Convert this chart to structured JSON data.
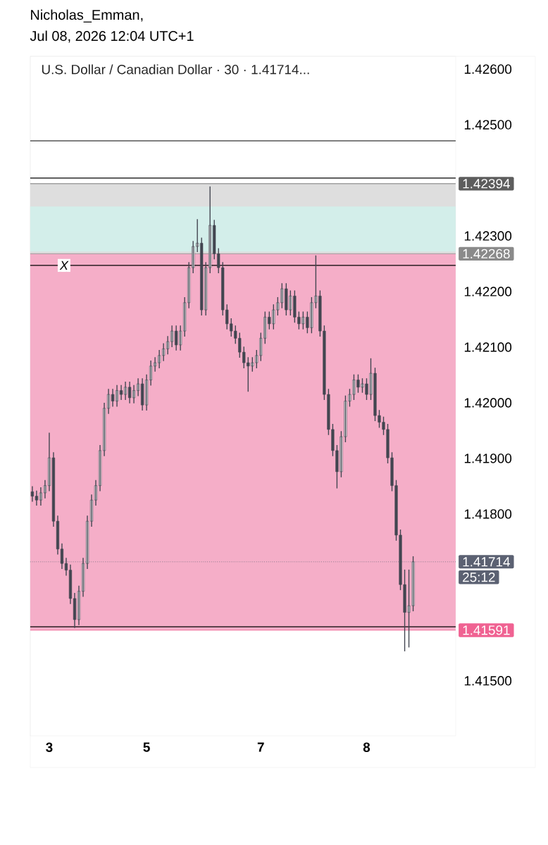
{
  "chart_data": {
    "type": "candlestick",
    "title": "U.S. Dollar / Canadian Dollar · 30 · 1.41714...",
    "annotations": [
      "Nicholas_Emman,",
      "Jul 08, 2026 12:04 UTC+1",
      "25:12"
    ],
    "color": "#434651",
    "categories": [
      null,
      null,
      null,
      null,
      "3",
      null,
      null,
      null,
      null,
      null,
      null,
      null,
      null,
      null,
      null,
      null,
      null,
      null,
      null,
      null,
      null,
      null,
      null,
      null,
      null,
      null,
      null,
      "5",
      null,
      null,
      null,
      null,
      null,
      null,
      null,
      null,
      null,
      null,
      null,
      null,
      null,
      null,
      null,
      null,
      null,
      null,
      null,
      null,
      null,
      null,
      null,
      null,
      null,
      null,
      "7",
      null,
      null,
      null,
      null,
      null,
      null,
      null,
      null,
      null,
      null,
      null,
      null,
      null,
      null,
      null,
      null,
      null,
      null,
      null,
      null,
      null,
      null,
      null,
      null,
      "8",
      null,
      null,
      null,
      null,
      null,
      null,
      null,
      null,
      null,
      null,
      null
    ],
    "ohlc": [
      [
        1.4184,
        1.4185,
        1.41822,
        1.41832
      ],
      [
        1.41832,
        1.41842,
        1.41815,
        1.41825
      ],
      [
        1.41825,
        1.41848,
        1.41815,
        1.41838
      ],
      [
        1.41838,
        1.41861,
        1.41828,
        1.41851
      ],
      [
        1.41851,
        1.41946,
        1.41841,
        1.41901
      ],
      [
        1.41901,
        1.41911,
        1.41777,
        1.41787
      ],
      [
        1.41787,
        1.41797,
        1.41727,
        1.41737
      ],
      [
        1.41737,
        1.41747,
        1.41701,
        1.41711
      ],
      [
        1.41711,
        1.41721,
        1.41689,
        1.41699
      ],
      [
        1.41699,
        1.41709,
        1.41638,
        1.41648
      ],
      [
        1.41648,
        1.41658,
        1.41595,
        1.4161
      ],
      [
        1.4161,
        1.41671,
        1.416,
        1.41661
      ],
      [
        1.41661,
        1.41721,
        1.41651,
        1.41711
      ],
      [
        1.41711,
        1.41797,
        1.41701,
        1.41787
      ],
      [
        1.41787,
        1.41835,
        1.41777,
        1.41825
      ],
      [
        1.41825,
        1.41861,
        1.41815,
        1.41851
      ],
      [
        1.41851,
        1.41924,
        1.41841,
        1.41914
      ],
      [
        1.41914,
        1.42,
        1.41904,
        1.4199
      ],
      [
        1.4199,
        1.42025,
        1.4198,
        1.42015
      ],
      [
        1.42015,
        1.42025,
        1.41993,
        1.42003
      ],
      [
        1.42003,
        1.42032,
        1.41993,
        1.42022
      ],
      [
        1.42022,
        1.42032,
        1.42005,
        1.42015
      ],
      [
        1.42015,
        1.42038,
        1.42005,
        1.42028
      ],
      [
        1.42028,
        1.42038,
        1.41999,
        1.42009
      ],
      [
        1.42009,
        1.42032,
        1.41999,
        1.42022
      ],
      [
        1.42022,
        1.42044,
        1.42012,
        1.42034
      ],
      [
        1.42034,
        1.42044,
        1.41986,
        1.41996
      ],
      [
        1.41996,
        1.42051,
        1.41986,
        1.42041
      ],
      [
        1.42041,
        1.42076,
        1.42031,
        1.42066
      ],
      [
        1.42066,
        1.42082,
        1.42056,
        1.42072
      ],
      [
        1.42072,
        1.42095,
        1.42062,
        1.42085
      ],
      [
        1.42085,
        1.42107,
        1.42075,
        1.42097
      ],
      [
        1.42097,
        1.4212,
        1.42087,
        1.4211
      ],
      [
        1.4211,
        1.42139,
        1.421,
        1.42129
      ],
      [
        1.42129,
        1.42139,
        1.42094,
        1.42104
      ],
      [
        1.42104,
        1.42139,
        1.42094,
        1.42129
      ],
      [
        1.42129,
        1.4219,
        1.42119,
        1.4218
      ],
      [
        1.4218,
        1.42253,
        1.4217,
        1.42243
      ],
      [
        1.42243,
        1.42291,
        1.42233,
        1.42281
      ],
      [
        1.42281,
        1.4233,
        1.42271,
        1.42287
      ],
      [
        1.42287,
        1.42297,
        1.42157,
        1.42167
      ],
      [
        1.42167,
        1.42253,
        1.42157,
        1.42243
      ],
      [
        1.42243,
        1.42389,
        1.42233,
        1.42319
      ],
      [
        1.42319,
        1.42329,
        1.42258,
        1.42268
      ],
      [
        1.42268,
        1.42278,
        1.42233,
        1.42243
      ],
      [
        1.42243,
        1.42253,
        1.42157,
        1.42167
      ],
      [
        1.42167,
        1.42177,
        1.42132,
        1.42142
      ],
      [
        1.42142,
        1.42152,
        1.42119,
        1.42129
      ],
      [
        1.42129,
        1.42139,
        1.42106,
        1.42116
      ],
      [
        1.42116,
        1.42126,
        1.42081,
        1.42091
      ],
      [
        1.42091,
        1.42101,
        1.42062,
        1.42072
      ],
      [
        1.42072,
        1.42082,
        1.4202,
        1.42066
      ],
      [
        1.42066,
        1.42082,
        1.42056,
        1.42072
      ],
      [
        1.42072,
        1.42095,
        1.42062,
        1.42085
      ],
      [
        1.42085,
        1.42126,
        1.42075,
        1.42116
      ],
      [
        1.42116,
        1.42164,
        1.42106,
        1.42154
      ],
      [
        1.42154,
        1.42164,
        1.42132,
        1.42142
      ],
      [
        1.42142,
        1.42177,
        1.42132,
        1.42167
      ],
      [
        1.42167,
        1.4219,
        1.42157,
        1.4218
      ],
      [
        1.4218,
        1.42215,
        1.4217,
        1.42205
      ],
      [
        1.42205,
        1.42215,
        1.42157,
        1.42167
      ],
      [
        1.42167,
        1.42202,
        1.42157,
        1.42192
      ],
      [
        1.42192,
        1.42202,
        1.42144,
        1.42154
      ],
      [
        1.42154,
        1.42164,
        1.42132,
        1.42142
      ],
      [
        1.42142,
        1.42164,
        1.42132,
        1.42154
      ],
      [
        1.42154,
        1.42164,
        1.42125,
        1.42135
      ],
      [
        1.42135,
        1.4219,
        1.42125,
        1.4218
      ],
      [
        1.4218,
        1.42265,
        1.4217,
        1.42192
      ],
      [
        1.42192,
        1.42202,
        1.42119,
        1.42129
      ],
      [
        1.42129,
        1.42139,
        1.42005,
        1.42015
      ],
      [
        1.42015,
        1.42025,
        1.41942,
        1.41952
      ],
      [
        1.41952,
        1.41962,
        1.41904,
        1.41914
      ],
      [
        1.41914,
        1.41924,
        1.41846,
        1.41876
      ],
      [
        1.41876,
        1.41949,
        1.41866,
        1.41939
      ],
      [
        1.41939,
        1.42013,
        1.41929,
        1.42003
      ],
      [
        1.42003,
        1.42025,
        1.41993,
        1.42015
      ],
      [
        1.42015,
        1.42051,
        1.42005,
        1.42041
      ],
      [
        1.42041,
        1.42051,
        1.42018,
        1.42028
      ],
      [
        1.42028,
        1.42044,
        1.42018,
        1.42034
      ],
      [
        1.42034,
        1.42044,
        1.42005,
        1.42015
      ],
      [
        1.42015,
        1.4208,
        1.42005,
        1.42053
      ],
      [
        1.42053,
        1.42063,
        1.41967,
        1.41977
      ],
      [
        1.41977,
        1.41987,
        1.41955,
        1.41965
      ],
      [
        1.41965,
        1.41975,
        1.41942,
        1.41952
      ],
      [
        1.41952,
        1.41962,
        1.41891,
        1.41901
      ],
      [
        1.41901,
        1.41911,
        1.41841,
        1.41851
      ],
      [
        1.41851,
        1.41861,
        1.41752,
        1.41762
      ],
      [
        1.41762,
        1.41772,
        1.41663,
        1.41673
      ],
      [
        1.41673,
        1.417,
        1.41553,
        1.41623
      ],
      [
        1.41623,
        1.417,
        1.4156,
        1.41635
      ],
      [
        1.41635,
        1.41724,
        1.41625,
        1.41714
      ]
    ],
    "ylim": [
      1.41401,
      1.42623
    ],
    "yticks": [
      {
        "value": 1.415,
        "label": "1.41500"
      },
      {
        "value": 1.418,
        "label": "1.41800"
      },
      {
        "value": 1.419,
        "label": "1.41900"
      },
      {
        "value": 1.42,
        "label": "1.42000"
      },
      {
        "value": 1.421,
        "label": "1.42100"
      },
      {
        "value": 1.422,
        "label": "1.42200"
      },
      {
        "value": 1.423,
        "label": "1.42300"
      },
      {
        "value": 1.425,
        "label": "1.42500"
      },
      {
        "value": 1.426,
        "label": "1.42600"
      }
    ],
    "bands": [
      {
        "axis": "y",
        "from": 1.42268,
        "to": 1.42394,
        "color": "#dedede"
      },
      {
        "axis": "y",
        "from": 1.42272,
        "to": 1.42353,
        "color": "#d3eeea"
      },
      {
        "axis": "y",
        "from": 1.41591,
        "to": 1.42268,
        "color": "#f5aec8"
      }
    ],
    "ref_lines": [
      {
        "axis": "y",
        "value": 1.42471
      },
      {
        "axis": "y",
        "value": 1.42404
      },
      {
        "axis": "y",
        "value": 1.42247,
        "label": "X"
      },
      {
        "axis": "y",
        "value": 1.41597
      },
      {
        "axis": "y",
        "value": 1.42394,
        "label": "1.42394",
        "color": "#5d5d5d"
      },
      {
        "axis": "y",
        "value": 1.42268,
        "label": "1.42268",
        "color": "#8a8a8a"
      },
      {
        "axis": "y",
        "value": 1.41714,
        "label": "1.41714",
        "color": "#5b6172",
        "line_style": "dotted"
      },
      {
        "axis": "y",
        "value": 1.41591,
        "label": "1.41591",
        "color": "#f06292"
      }
    ]
  }
}
